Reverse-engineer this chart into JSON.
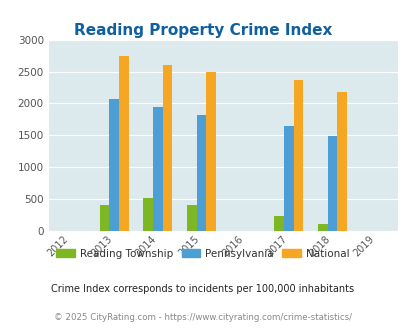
{
  "title": "Reading Property Crime Index",
  "years": [
    2012,
    2013,
    2014,
    2015,
    2016,
    2017,
    2018,
    2019
  ],
  "categories": [
    "Reading Township",
    "Pennsylvania",
    "National"
  ],
  "values": {
    "Reading Township": {
      "2013": 400,
      "2014": 510,
      "2015": 410,
      "2016": 0,
      "2017": 230,
      "2018": 110
    },
    "Pennsylvania": {
      "2013": 2075,
      "2014": 1950,
      "2015": 1825,
      "2016": 0,
      "2017": 1640,
      "2018": 1490
    },
    "National": {
      "2013": 2750,
      "2014": 2600,
      "2015": 2500,
      "2016": 0,
      "2017": 2360,
      "2018": 2175
    }
  },
  "colors": {
    "Reading Township": "#7DB724",
    "Pennsylvania": "#4D9ED4",
    "National": "#F5A623"
  },
  "ylim": [
    0,
    3000
  ],
  "yticks": [
    0,
    500,
    1000,
    1500,
    2000,
    2500,
    3000
  ],
  "bg_color": "#DCE9ED",
  "title_color": "#1060A0",
  "subtitle": "Crime Index corresponds to incidents per 100,000 inhabitants",
  "footer": "© 2025 CityRating.com - https://www.cityrating.com/crime-statistics/",
  "bar_width": 0.22,
  "group_years": [
    2013,
    2014,
    2015,
    2017,
    2018
  ]
}
